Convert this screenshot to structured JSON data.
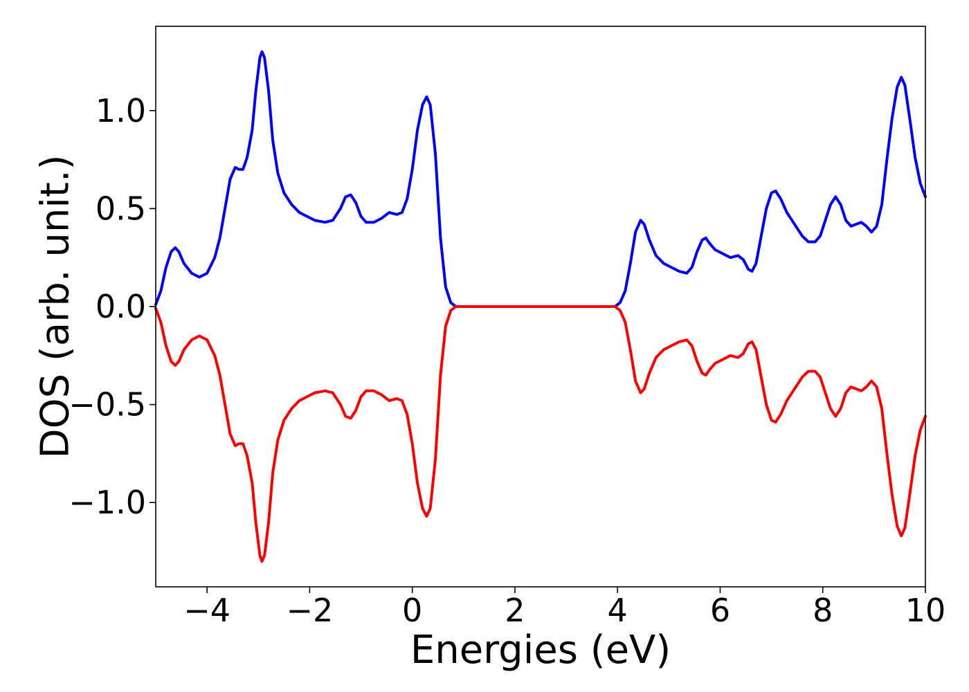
{
  "chart_data": {
    "type": "line",
    "title": "",
    "xlabel": "Energies (eV)",
    "ylabel": "DOS (arb. unit.)",
    "xlim": [
      -5,
      10
    ],
    "ylim": [
      -1.43,
      1.43
    ],
    "grid": false,
    "legend": "none",
    "xticks": [
      -4,
      -2,
      0,
      2,
      4,
      6,
      8,
      10
    ],
    "xtick_labels": [
      "−4",
      "−2",
      "0",
      "2",
      "4",
      "6",
      "8",
      "10"
    ],
    "yticks": [
      -1.0,
      -0.5,
      0.0,
      0.5,
      1.0
    ],
    "ytick_labels": [
      "−1.0",
      "−0.5",
      "0.0",
      "0.5",
      "1.0"
    ],
    "series": [
      {
        "color": "#0000ff",
        "points": [
          [
            -5.0,
            0.01
          ],
          [
            -4.9,
            0.08
          ],
          [
            -4.8,
            0.2
          ],
          [
            -4.7,
            0.28
          ],
          [
            -4.62,
            0.3
          ],
          [
            -4.55,
            0.28
          ],
          [
            -4.45,
            0.22
          ],
          [
            -4.3,
            0.17
          ],
          [
            -4.15,
            0.15
          ],
          [
            -4.0,
            0.17
          ],
          [
            -3.85,
            0.25
          ],
          [
            -3.75,
            0.35
          ],
          [
            -3.65,
            0.5
          ],
          [
            -3.55,
            0.65
          ],
          [
            -3.45,
            0.71
          ],
          [
            -3.38,
            0.7
          ],
          [
            -3.3,
            0.7
          ],
          [
            -3.22,
            0.76
          ],
          [
            -3.12,
            0.9
          ],
          [
            -3.05,
            1.1
          ],
          [
            -2.97,
            1.27
          ],
          [
            -2.93,
            1.3
          ],
          [
            -2.88,
            1.27
          ],
          [
            -2.8,
            1.1
          ],
          [
            -2.72,
            0.85
          ],
          [
            -2.62,
            0.68
          ],
          [
            -2.5,
            0.58
          ],
          [
            -2.35,
            0.52
          ],
          [
            -2.2,
            0.48
          ],
          [
            -2.05,
            0.46
          ],
          [
            -1.9,
            0.44
          ],
          [
            -1.7,
            0.43
          ],
          [
            -1.55,
            0.44
          ],
          [
            -1.4,
            0.5
          ],
          [
            -1.3,
            0.56
          ],
          [
            -1.2,
            0.57
          ],
          [
            -1.1,
            0.53
          ],
          [
            -1.0,
            0.46
          ],
          [
            -0.9,
            0.43
          ],
          [
            -0.75,
            0.43
          ],
          [
            -0.6,
            0.45
          ],
          [
            -0.45,
            0.48
          ],
          [
            -0.3,
            0.47
          ],
          [
            -0.2,
            0.48
          ],
          [
            -0.1,
            0.55
          ],
          [
            0.0,
            0.7
          ],
          [
            0.1,
            0.9
          ],
          [
            0.2,
            1.03
          ],
          [
            0.28,
            1.07
          ],
          [
            0.35,
            1.03
          ],
          [
            0.45,
            0.78
          ],
          [
            0.55,
            0.35
          ],
          [
            0.65,
            0.1
          ],
          [
            0.75,
            0.02
          ],
          [
            0.85,
            0.0
          ],
          [
            2.0,
            0.0
          ],
          [
            3.0,
            0.0
          ],
          [
            3.95,
            0.0
          ],
          [
            4.05,
            0.02
          ],
          [
            4.15,
            0.08
          ],
          [
            4.25,
            0.22
          ],
          [
            4.35,
            0.38
          ],
          [
            4.45,
            0.44
          ],
          [
            4.52,
            0.42
          ],
          [
            4.62,
            0.34
          ],
          [
            4.75,
            0.26
          ],
          [
            4.9,
            0.22
          ],
          [
            5.05,
            0.2
          ],
          [
            5.2,
            0.18
          ],
          [
            5.35,
            0.17
          ],
          [
            5.45,
            0.2
          ],
          [
            5.55,
            0.28
          ],
          [
            5.65,
            0.34
          ],
          [
            5.72,
            0.35
          ],
          [
            5.8,
            0.32
          ],
          [
            5.9,
            0.29
          ],
          [
            6.05,
            0.27
          ],
          [
            6.2,
            0.25
          ],
          [
            6.35,
            0.26
          ],
          [
            6.45,
            0.24
          ],
          [
            6.55,
            0.19
          ],
          [
            6.62,
            0.18
          ],
          [
            6.7,
            0.22
          ],
          [
            6.8,
            0.36
          ],
          [
            6.9,
            0.5
          ],
          [
            7.0,
            0.58
          ],
          [
            7.08,
            0.59
          ],
          [
            7.18,
            0.55
          ],
          [
            7.3,
            0.48
          ],
          [
            7.45,
            0.42
          ],
          [
            7.6,
            0.36
          ],
          [
            7.72,
            0.33
          ],
          [
            7.85,
            0.33
          ],
          [
            7.95,
            0.36
          ],
          [
            8.05,
            0.44
          ],
          [
            8.15,
            0.52
          ],
          [
            8.25,
            0.56
          ],
          [
            8.35,
            0.52
          ],
          [
            8.45,
            0.44
          ],
          [
            8.55,
            0.41
          ],
          [
            8.65,
            0.42
          ],
          [
            8.75,
            0.43
          ],
          [
            8.85,
            0.41
          ],
          [
            8.95,
            0.38
          ],
          [
            9.05,
            0.41
          ],
          [
            9.15,
            0.52
          ],
          [
            9.25,
            0.75
          ],
          [
            9.35,
            0.96
          ],
          [
            9.45,
            1.12
          ],
          [
            9.53,
            1.17
          ],
          [
            9.6,
            1.13
          ],
          [
            9.7,
            0.95
          ],
          [
            9.8,
            0.76
          ],
          [
            9.9,
            0.63
          ],
          [
            10.0,
            0.56
          ]
        ]
      },
      {
        "color": "#ff0000",
        "points": [
          [
            -5.0,
            -0.01
          ],
          [
            -4.9,
            -0.08
          ],
          [
            -4.8,
            -0.2
          ],
          [
            -4.7,
            -0.28
          ],
          [
            -4.62,
            -0.3
          ],
          [
            -4.55,
            -0.28
          ],
          [
            -4.45,
            -0.22
          ],
          [
            -4.3,
            -0.17
          ],
          [
            -4.15,
            -0.15
          ],
          [
            -4.0,
            -0.17
          ],
          [
            -3.85,
            -0.25
          ],
          [
            -3.75,
            -0.35
          ],
          [
            -3.65,
            -0.5
          ],
          [
            -3.55,
            -0.65
          ],
          [
            -3.45,
            -0.71
          ],
          [
            -3.38,
            -0.7
          ],
          [
            -3.3,
            -0.7
          ],
          [
            -3.22,
            -0.76
          ],
          [
            -3.12,
            -0.9
          ],
          [
            -3.05,
            -1.1
          ],
          [
            -2.97,
            -1.27
          ],
          [
            -2.93,
            -1.3
          ],
          [
            -2.88,
            -1.27
          ],
          [
            -2.8,
            -1.1
          ],
          [
            -2.72,
            -0.85
          ],
          [
            -2.62,
            -0.68
          ],
          [
            -2.5,
            -0.58
          ],
          [
            -2.35,
            -0.52
          ],
          [
            -2.2,
            -0.48
          ],
          [
            -2.05,
            -0.46
          ],
          [
            -1.9,
            -0.44
          ],
          [
            -1.7,
            -0.43
          ],
          [
            -1.55,
            -0.44
          ],
          [
            -1.4,
            -0.5
          ],
          [
            -1.3,
            -0.56
          ],
          [
            -1.2,
            -0.57
          ],
          [
            -1.1,
            -0.53
          ],
          [
            -1.0,
            -0.46
          ],
          [
            -0.9,
            -0.43
          ],
          [
            -0.75,
            -0.43
          ],
          [
            -0.6,
            -0.45
          ],
          [
            -0.45,
            -0.48
          ],
          [
            -0.3,
            -0.47
          ],
          [
            -0.2,
            -0.48
          ],
          [
            -0.1,
            -0.55
          ],
          [
            0.0,
            -0.7
          ],
          [
            0.1,
            -0.9
          ],
          [
            0.2,
            -1.03
          ],
          [
            0.28,
            -1.07
          ],
          [
            0.35,
            -1.03
          ],
          [
            0.45,
            -0.78
          ],
          [
            0.55,
            -0.35
          ],
          [
            0.65,
            -0.1
          ],
          [
            0.75,
            -0.02
          ],
          [
            0.85,
            0.0
          ],
          [
            2.0,
            0.0
          ],
          [
            3.0,
            0.0
          ],
          [
            3.95,
            0.0
          ],
          [
            4.05,
            -0.02
          ],
          [
            4.15,
            -0.08
          ],
          [
            4.25,
            -0.22
          ],
          [
            4.35,
            -0.38
          ],
          [
            4.45,
            -0.44
          ],
          [
            4.52,
            -0.42
          ],
          [
            4.62,
            -0.34
          ],
          [
            4.75,
            -0.26
          ],
          [
            4.9,
            -0.22
          ],
          [
            5.05,
            -0.2
          ],
          [
            5.2,
            -0.18
          ],
          [
            5.35,
            -0.17
          ],
          [
            5.45,
            -0.2
          ],
          [
            5.55,
            -0.28
          ],
          [
            5.65,
            -0.34
          ],
          [
            5.72,
            -0.35
          ],
          [
            5.8,
            -0.32
          ],
          [
            5.9,
            -0.29
          ],
          [
            6.05,
            -0.27
          ],
          [
            6.2,
            -0.25
          ],
          [
            6.35,
            -0.26
          ],
          [
            6.45,
            -0.24
          ],
          [
            6.55,
            -0.19
          ],
          [
            6.62,
            -0.18
          ],
          [
            6.7,
            -0.22
          ],
          [
            6.8,
            -0.36
          ],
          [
            6.9,
            -0.5
          ],
          [
            7.0,
            -0.58
          ],
          [
            7.08,
            -0.59
          ],
          [
            7.18,
            -0.55
          ],
          [
            7.3,
            -0.48
          ],
          [
            7.45,
            -0.42
          ],
          [
            7.6,
            -0.36
          ],
          [
            7.72,
            -0.33
          ],
          [
            7.85,
            -0.33
          ],
          [
            7.95,
            -0.36
          ],
          [
            8.05,
            -0.44
          ],
          [
            8.15,
            -0.52
          ],
          [
            8.25,
            -0.56
          ],
          [
            8.35,
            -0.52
          ],
          [
            8.45,
            -0.44
          ],
          [
            8.55,
            -0.41
          ],
          [
            8.65,
            -0.42
          ],
          [
            8.75,
            -0.43
          ],
          [
            8.85,
            -0.41
          ],
          [
            8.95,
            -0.38
          ],
          [
            9.05,
            -0.41
          ],
          [
            9.15,
            -0.52
          ],
          [
            9.25,
            -0.75
          ],
          [
            9.35,
            -0.96
          ],
          [
            9.45,
            -1.12
          ],
          [
            9.53,
            -1.17
          ],
          [
            9.6,
            -1.13
          ],
          [
            9.7,
            -0.95
          ],
          [
            9.8,
            -0.76
          ],
          [
            9.9,
            -0.63
          ],
          [
            10.0,
            -0.56
          ]
        ]
      }
    ]
  }
}
